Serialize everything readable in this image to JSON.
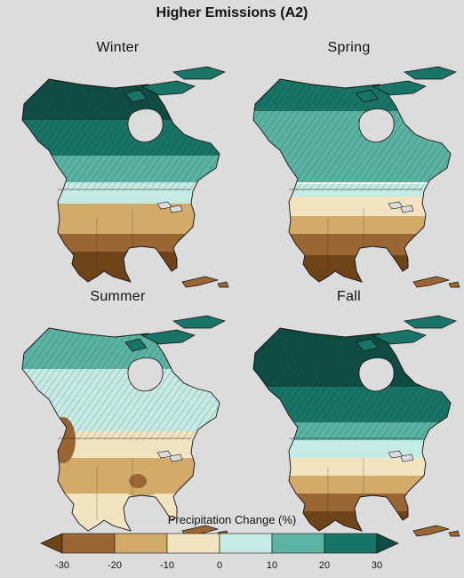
{
  "title": "Higher Emissions (A2)",
  "panels": [
    {
      "season": "Winter",
      "scheme": "winter"
    },
    {
      "season": "Spring",
      "scheme": "spring"
    },
    {
      "season": "Summer",
      "scheme": "summer"
    },
    {
      "season": "Fall",
      "scheme": "fall"
    }
  ],
  "legend": {
    "title": "Precipitation Change (%)",
    "bins": [
      {
        "from": "<-30",
        "to": -30,
        "color": "#6f4318"
      },
      {
        "from": -30,
        "to": -20,
        "color": "#9a6633"
      },
      {
        "from": -20,
        "to": -10,
        "color": "#d2ab6a"
      },
      {
        "from": -10,
        "to": 0,
        "color": "#f2e3c1"
      },
      {
        "from": 0,
        "to": 10,
        "color": "#c6ebe5"
      },
      {
        "from": 10,
        "to": 20,
        "color": "#5bb3a4"
      },
      {
        "from": 20,
        "to": 30,
        "color": "#187466"
      },
      {
        "from": 30,
        "to": ">30",
        "color": "#0f4d44"
      }
    ],
    "ticks": [
      "-30",
      "-20",
      "-10",
      "0",
      "10",
      "20",
      "30"
    ]
  },
  "hatching_meaning_visible": false
}
